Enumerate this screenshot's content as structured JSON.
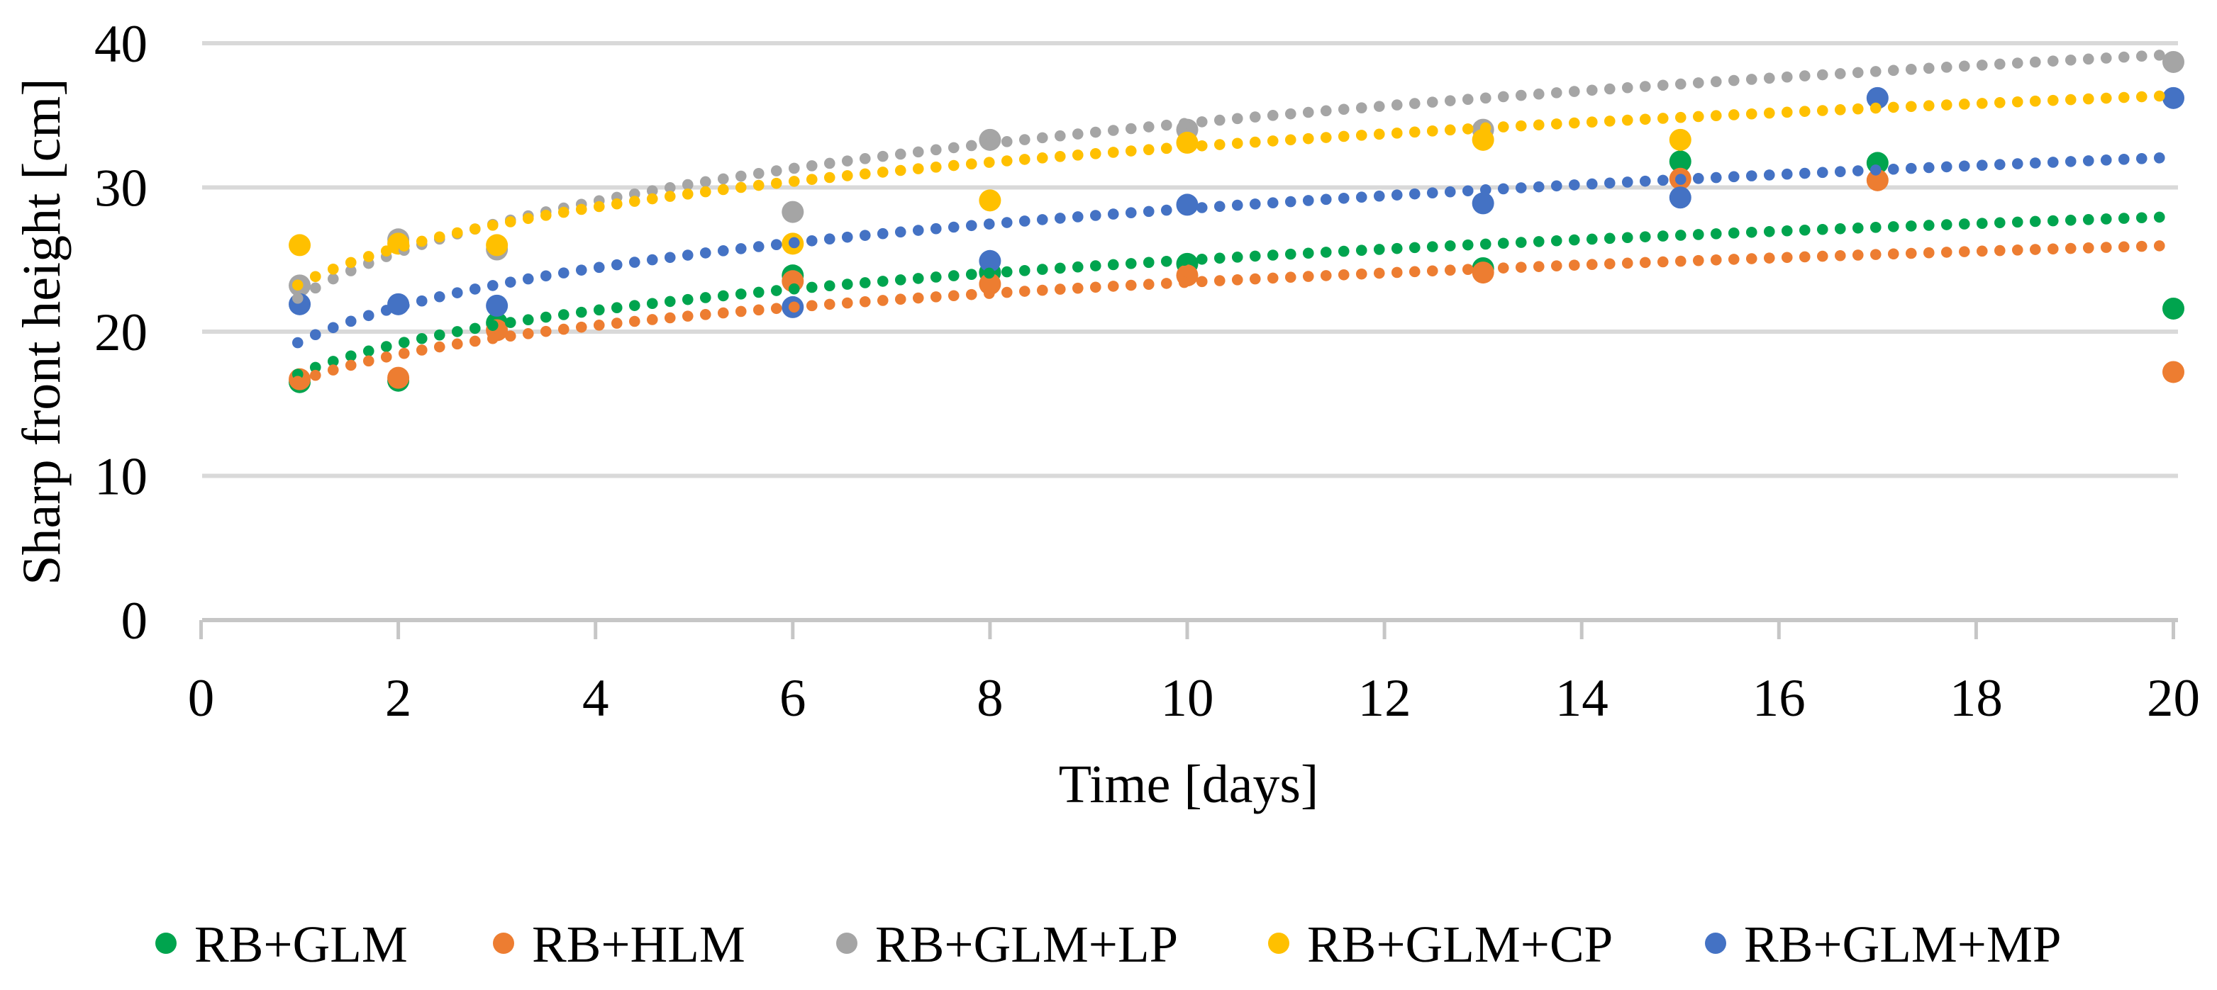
{
  "figure_title": "",
  "y_axis": {
    "title": "Sharp front height [cm]",
    "tick_labels": [
      "0",
      "10",
      "20",
      "30",
      "40"
    ],
    "tick_values": [
      0,
      10,
      20,
      30,
      40
    ],
    "range": [
      0,
      40
    ]
  },
  "x_axis": {
    "title": "Time [days]",
    "tick_labels": [
      "0",
      "2",
      "4",
      "6",
      "8",
      "10",
      "12",
      "14",
      "16",
      "18",
      "20"
    ],
    "tick_values": [
      0,
      2,
      4,
      6,
      8,
      10,
      12,
      14,
      16,
      18,
      20
    ],
    "range": [
      0,
      20
    ]
  },
  "colors": {
    "green": "#00A44E",
    "orange": "#ED7D31",
    "gray": "#A5A5A5",
    "yellow": "#FFC000",
    "blue": "#4472C4",
    "gridline": "#D9D9D9",
    "axis_line": "#C6C6C6",
    "text": "#000000"
  },
  "chart_data": {
    "type": "scatter",
    "title": "",
    "xlabel": "Time [days]",
    "ylabel": "Sharp front height [cm]",
    "xlim": [
      0,
      20
    ],
    "ylim": [
      0,
      40
    ],
    "grid": "horizontal-only",
    "legend_position": "bottom",
    "marker": "filled-circle",
    "trendline_style": "round-dotted, power fit y = a * x^k",
    "series": [
      {
        "name": "RB+GLM",
        "color": "#00A44E",
        "x": [
          1,
          2,
          3,
          6,
          8,
          10,
          13,
          15,
          17,
          20
        ],
        "y": [
          16.5,
          16.6,
          20.6,
          23.9,
          24.1,
          24.7,
          24.4,
          31.8,
          31.7,
          21.6
        ],
        "trend": {
          "type": "power",
          "a": 17.1,
          "k": 0.1643,
          "x_start": 0.98,
          "x_end": 19.92
        }
      },
      {
        "name": "RB+HLM",
        "color": "#ED7D31",
        "x": [
          1,
          2,
          3,
          6,
          8,
          10,
          13,
          15,
          17,
          20
        ],
        "y": [
          16.7,
          16.8,
          20.1,
          23.5,
          23.3,
          23.9,
          24.1,
          30.6,
          30.5,
          17.2
        ],
        "trend": {
          "type": "power",
          "a": 16.6,
          "k": 0.1495,
          "x_start": 0.98,
          "x_end": 19.92
        }
      },
      {
        "name": "RB+GLM+LP",
        "color": "#A5A5A5",
        "x": [
          1,
          2,
          3,
          6,
          8,
          10,
          13,
          20
        ],
        "y": [
          23.2,
          26.4,
          25.7,
          28.3,
          33.3,
          34.0,
          34.0,
          38.7
        ],
        "trend": {
          "type": "power",
          "a": 22.4,
          "k": 0.187,
          "x_start": 0.98,
          "x_end": 19.92
        }
      },
      {
        "name": "RB+GLM+CP",
        "color": "#FFC000",
        "x": [
          1,
          2,
          3,
          6,
          8,
          10,
          13,
          15
        ],
        "y": [
          26.0,
          26.1,
          26.0,
          26.1,
          29.1,
          33.1,
          33.3,
          33.3
        ],
        "trend": {
          "type": "power",
          "a": 23.3,
          "k": 0.1487,
          "x_start": 0.98,
          "x_end": 19.92
        }
      },
      {
        "name": "RB+GLM+MP",
        "color": "#4472C4",
        "x": [
          1,
          2,
          3,
          6,
          8,
          10,
          13,
          15,
          17,
          20
        ],
        "y": [
          21.9,
          21.9,
          21.8,
          21.7,
          24.9,
          28.8,
          28.9,
          29.3,
          36.2,
          36.2
        ],
        "trend": {
          "type": "power",
          "a": 19.3,
          "k": 0.1697,
          "x_start": 0.98,
          "x_end": 19.92
        }
      }
    ],
    "legend_entries": [
      "RB+GLM",
      "RB+HLM",
      "RB+GLM+LP",
      "RB+GLM+CP",
      "RB+GLM+MP"
    ]
  }
}
